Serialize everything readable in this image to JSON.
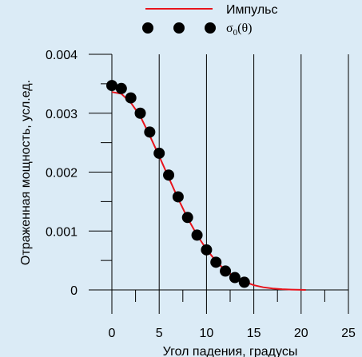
{
  "colors": {
    "background": "#dbebf6",
    "pulse_line": "#e8141c",
    "points": "#000000"
  },
  "chart_data": {
    "type": "scatter",
    "xlabel": "Угол падения, градусы",
    "ylabel": "Отраженная мощность, усл.ед.",
    "xlim": [
      0,
      25
    ],
    "ylim": [
      0,
      0.004
    ],
    "xticks": [
      "0",
      "5",
      "10",
      "15",
      "20",
      "25"
    ],
    "yticks": [
      "0",
      "0.001",
      "0.002",
      "0.003",
      "0.004"
    ],
    "grid": "vertical lines at x = 5, 10, 15, 20, 25",
    "legend_placement": "top-right",
    "legend": {
      "line_label": "Импульс",
      "points_label_main": "σ",
      "points_label_sub": "0",
      "points_label_arg": "(θ)"
    },
    "series": [
      {
        "name": "Импульс",
        "kind": "line",
        "color": "#e8141c",
        "x": [
          0,
          1,
          2,
          3,
          4,
          5,
          6,
          7,
          8,
          9,
          10,
          11,
          12,
          13,
          14,
          15,
          16,
          17,
          18,
          19,
          20,
          20.5
        ],
        "y": [
          0.00336,
          0.00333,
          0.00318,
          0.00295,
          0.00262,
          0.00227,
          0.00191,
          0.00155,
          0.00122,
          0.00093,
          0.00069,
          0.00049,
          0.00033,
          0.00022,
          0.00014,
          8e-05,
          4.5e-05,
          2.5e-05,
          1.2e-05,
          6e-06,
          2e-06,
          0.0
        ]
      },
      {
        "name": "σ0(θ)",
        "kind": "points",
        "color": "#000000",
        "x": [
          0,
          1,
          2,
          3,
          4,
          5,
          6,
          7,
          8,
          9,
          10,
          11,
          12,
          13,
          14
        ],
        "y": [
          0.00347,
          0.00342,
          0.00326,
          0.003,
          0.00268,
          0.00232,
          0.00195,
          0.00158,
          0.00123,
          0.00093,
          0.00068,
          0.00047,
          0.00032,
          0.00021,
          0.00013
        ]
      }
    ]
  }
}
